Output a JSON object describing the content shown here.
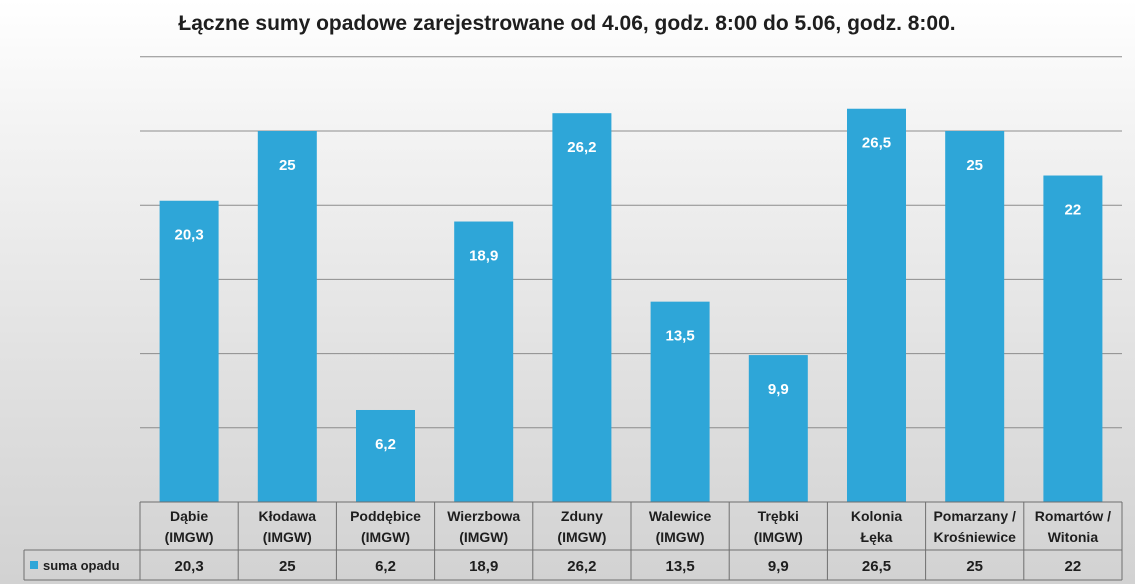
{
  "chart_data": {
    "type": "bar",
    "title": "Łączne sumy opadowe zarejestrowane od 4.06, godz. 8:00 do 5.06, godz. 8:00.",
    "categories": [
      [
        "Dąbie",
        "(IMGW)"
      ],
      [
        "Kłodawa",
        "(IMGW)"
      ],
      [
        "Poddębice",
        "(IMGW)"
      ],
      [
        "Wierzbowa",
        "(IMGW)"
      ],
      [
        "Zduny",
        "(IMGW)"
      ],
      [
        "Walewice",
        "(IMGW)"
      ],
      [
        "Trębki",
        "(IMGW)"
      ],
      [
        "Kolonia",
        "Łęka"
      ],
      [
        "Pomarzany /",
        "Krośniewice"
      ],
      [
        "Romartów /",
        "Witonia"
      ]
    ],
    "series": [
      {
        "name": "suma opadu",
        "values": [
          20.3,
          25,
          6.2,
          18.9,
          26.2,
          13.5,
          9.9,
          26.5,
          25,
          22
        ],
        "labels": [
          "20,3",
          "25",
          "6,2",
          "18,9",
          "26,2",
          "13,5",
          "9,9",
          "26,5",
          "25",
          "22"
        ]
      }
    ],
    "ylim": [
      0,
      30
    ],
    "grid": true,
    "data_table": true,
    "legend_placement": "data-table-left",
    "colors": {
      "bar": "#2ea6d8",
      "grid": "#8c8c8c",
      "table_border": "#6f6f6f"
    }
  }
}
